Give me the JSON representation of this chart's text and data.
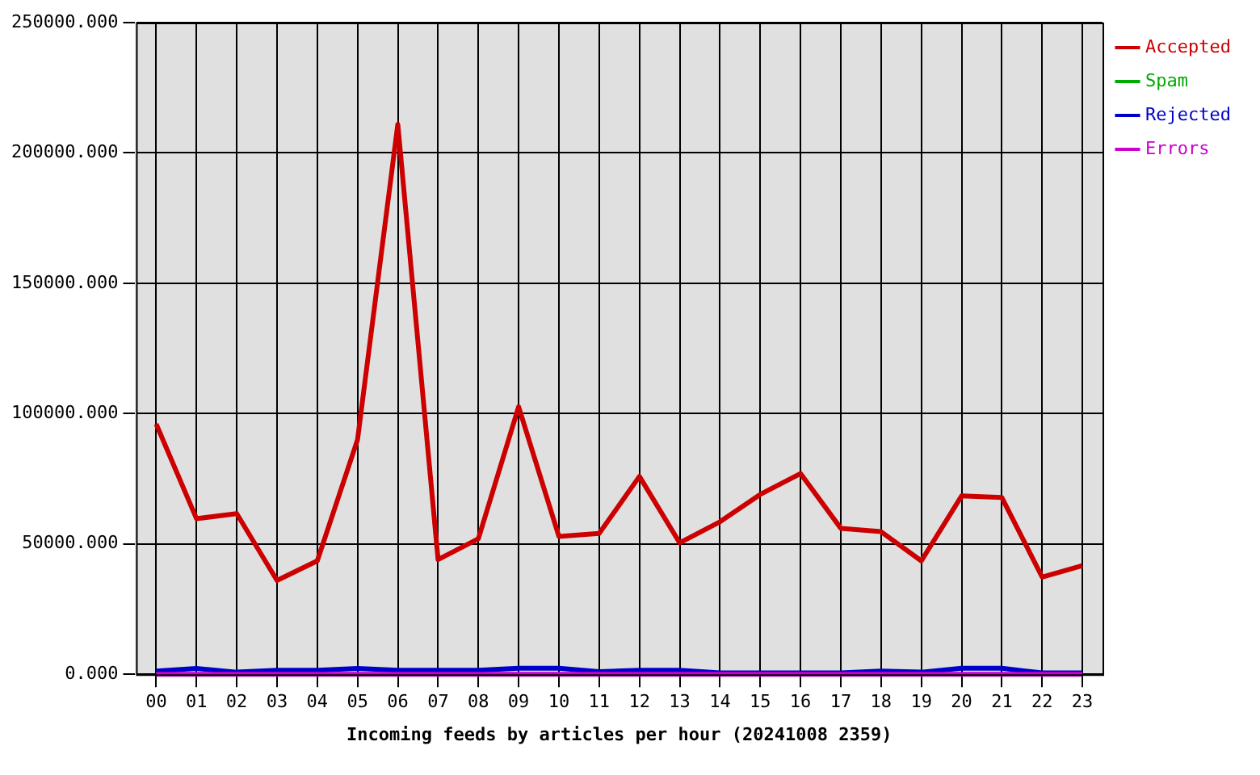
{
  "chart_data": {
    "type": "line",
    "xlabel": "Incoming feeds by articles per hour (20241008 2359)",
    "categories": [
      "00",
      "01",
      "02",
      "03",
      "04",
      "05",
      "06",
      "07",
      "08",
      "09",
      "10",
      "11",
      "12",
      "13",
      "14",
      "15",
      "16",
      "17",
      "18",
      "19",
      "20",
      "21",
      "22",
      "23"
    ],
    "series": [
      {
        "name": "Accepted",
        "color": "#cc0000",
        "values": [
          96000,
          59700,
          61600,
          36000,
          43500,
          90000,
          211000,
          44000,
          52000,
          102600,
          52900,
          54000,
          75900,
          50400,
          58500,
          69000,
          77000,
          56000,
          54700,
          43500,
          68400,
          67800,
          37300,
          41700
        ]
      },
      {
        "name": "Spam",
        "color": "#00aa00",
        "values": [
          null,
          null,
          null,
          null,
          null,
          null,
          null,
          null,
          null,
          null,
          null,
          null,
          null,
          null,
          null,
          null,
          null,
          null,
          null,
          null,
          null,
          null,
          null,
          null
        ]
      },
      {
        "name": "Rejected",
        "color": "#0000cc",
        "values": [
          1200,
          2200,
          800,
          1500,
          1500,
          2200,
          1500,
          1500,
          1500,
          2300,
          2300,
          1000,
          1500,
          1500,
          500,
          500,
          500,
          500,
          1200,
          800,
          2300,
          2300,
          500,
          500
        ]
      },
      {
        "name": "Errors",
        "color": "#cc00cc",
        "values": [
          0,
          0,
          0,
          0,
          0,
          0,
          0,
          0,
          0,
          0,
          0,
          0,
          0,
          0,
          0,
          0,
          0,
          0,
          0,
          0,
          0,
          0,
          0,
          0
        ]
      }
    ],
    "ylim": [
      0,
      250000
    ],
    "yticks": [
      {
        "value": 0,
        "label": "0.000"
      },
      {
        "value": 50000,
        "label": "50000.000"
      },
      {
        "value": 100000,
        "label": "100000.000"
      },
      {
        "value": 150000,
        "label": "150000.000"
      },
      {
        "value": 200000,
        "label": "200000.000"
      },
      {
        "value": 250000,
        "label": "250000.000"
      }
    ],
    "grid": true,
    "legend": "top right",
    "marker": "none",
    "line_style": "solid"
  }
}
